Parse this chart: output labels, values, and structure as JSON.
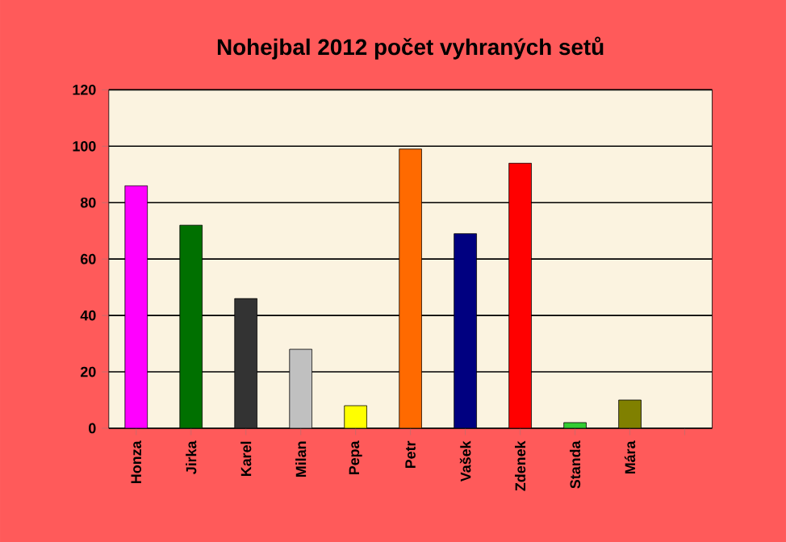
{
  "chart_data": {
    "type": "bar",
    "title": "Nohejbal 2012 počet vyhraných setů",
    "categories": [
      "Honza",
      "Jirka",
      "Karel",
      "Milan",
      "Pepa",
      "Petr",
      "Vašek",
      "Zdenek",
      "Standa",
      "Mára",
      null
    ],
    "values": [
      86,
      72,
      46,
      28,
      8,
      99,
      69,
      94,
      2,
      10,
      null
    ],
    "colors": [
      "#ff00ff",
      "#007000",
      "#333333",
      "#c0c0c0",
      "#ffff00",
      "#ff6a00",
      "#000080",
      "#ff0000",
      "#33cc33",
      "#808000",
      "#808080"
    ],
    "ylim": [
      0,
      120
    ],
    "yticks": [
      0,
      20,
      40,
      60,
      80,
      100,
      120
    ],
    "grid": "y"
  }
}
